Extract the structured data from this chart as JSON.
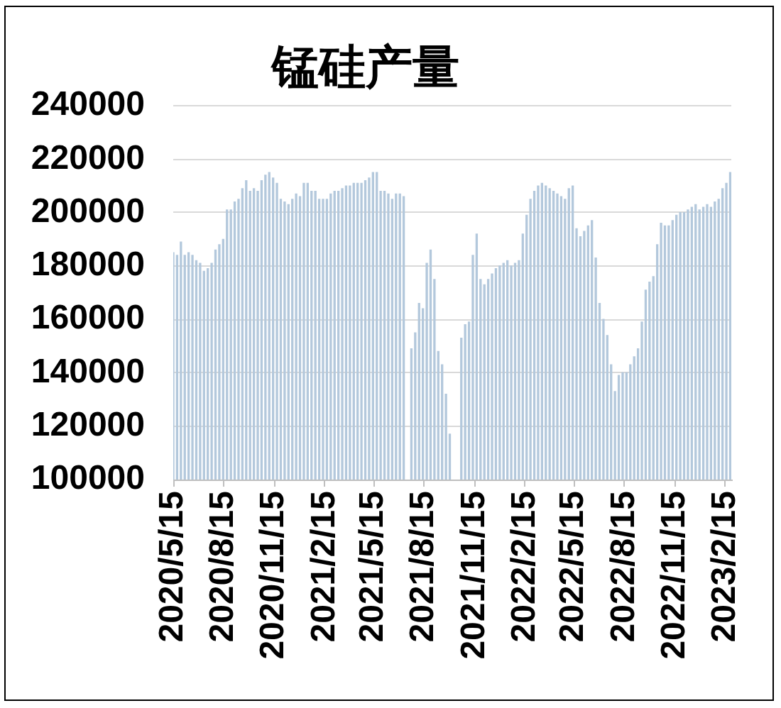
{
  "chart_data": {
    "type": "bar",
    "title": "锰硅产量",
    "x": [
      "2020-05-15",
      "2020-05-22",
      "2020-05-29",
      "2020-06-05",
      "2020-06-12",
      "2020-06-19",
      "2020-06-26",
      "2020-07-03",
      "2020-07-10",
      "2020-07-17",
      "2020-07-24",
      "2020-07-31",
      "2020-08-07",
      "2020-08-14",
      "2020-08-21",
      "2020-08-28",
      "2020-09-04",
      "2020-09-11",
      "2020-09-18",
      "2020-09-25",
      "2020-10-02",
      "2020-10-09",
      "2020-10-16",
      "2020-10-23",
      "2020-10-30",
      "2020-11-06",
      "2020-11-13",
      "2020-11-20",
      "2020-11-27",
      "2020-12-04",
      "2020-12-11",
      "2020-12-18",
      "2020-12-25",
      "2021-01-01",
      "2021-01-08",
      "2021-01-15",
      "2021-01-22",
      "2021-01-29",
      "2021-02-05",
      "2021-02-12",
      "2021-02-19",
      "2021-02-26",
      "2021-03-05",
      "2021-03-12",
      "2021-03-19",
      "2021-03-26",
      "2021-04-02",
      "2021-04-09",
      "2021-04-16",
      "2021-04-23",
      "2021-04-30",
      "2021-05-07",
      "2021-05-14",
      "2021-05-21",
      "2021-05-28",
      "2021-06-04",
      "2021-06-11",
      "2021-06-18",
      "2021-06-25",
      "2021-07-02",
      "2021-07-09",
      "2021-07-16",
      "2021-07-23",
      "2021-07-30",
      "2021-08-06",
      "2021-08-13",
      "2021-08-20",
      "2021-08-27",
      "2021-09-03",
      "2021-09-10",
      "2021-09-17",
      "2021-09-24",
      "2021-10-01",
      "2021-10-08",
      "2021-10-15",
      "2021-10-22",
      "2021-10-29",
      "2021-11-05",
      "2021-11-12",
      "2021-11-19",
      "2021-11-26",
      "2021-12-03",
      "2021-12-10",
      "2021-12-17",
      "2021-12-24",
      "2021-12-31",
      "2022-01-07",
      "2022-01-14",
      "2022-01-21",
      "2022-01-28",
      "2022-02-04",
      "2022-02-11",
      "2022-02-18",
      "2022-02-25",
      "2022-03-04",
      "2022-03-11",
      "2022-03-18",
      "2022-03-25",
      "2022-04-01",
      "2022-04-08",
      "2022-04-15",
      "2022-04-22",
      "2022-04-29",
      "2022-05-06",
      "2022-05-13",
      "2022-05-20",
      "2022-05-27",
      "2022-06-03",
      "2022-06-10",
      "2022-06-17",
      "2022-06-24",
      "2022-07-01",
      "2022-07-08",
      "2022-07-15",
      "2022-07-22",
      "2022-07-29",
      "2022-08-05",
      "2022-08-12",
      "2022-08-19",
      "2022-08-26",
      "2022-09-02",
      "2022-09-09",
      "2022-09-16",
      "2022-09-23",
      "2022-09-30",
      "2022-10-07",
      "2022-10-14",
      "2022-10-21",
      "2022-10-28",
      "2022-11-04",
      "2022-11-11",
      "2022-11-18",
      "2022-11-25",
      "2022-12-02",
      "2022-12-09",
      "2022-12-16",
      "2022-12-23",
      "2022-12-30",
      "2023-01-06",
      "2023-01-13",
      "2023-01-20",
      "2023-01-27",
      "2023-02-03",
      "2023-02-10",
      "2023-02-17",
      "2023-02-24"
    ],
    "values": [
      185000,
      184000,
      189000,
      184000,
      185000,
      184000,
      182000,
      181000,
      178000,
      179000,
      181000,
      186000,
      188000,
      190000,
      201000,
      201000,
      204000,
      205000,
      209000,
      212000,
      208000,
      209000,
      208000,
      212000,
      214000,
      215000,
      213000,
      211000,
      205000,
      204000,
      203000,
      205000,
      207000,
      206000,
      211000,
      211000,
      208000,
      208000,
      205000,
      205000,
      205000,
      207000,
      208000,
      208000,
      209000,
      210000,
      210000,
      211000,
      211000,
      211000,
      212000,
      213000,
      215000,
      215000,
      208000,
      208000,
      207000,
      205000,
      207000,
      207000,
      206000,
      null,
      149000,
      155000,
      166000,
      164000,
      181000,
      186000,
      175000,
      148000,
      143000,
      132000,
      117000,
      null,
      null,
      153000,
      158000,
      159000,
      184000,
      192000,
      175000,
      173000,
      175000,
      177000,
      179000,
      180000,
      181000,
      182000,
      180000,
      181000,
      182000,
      192000,
      199000,
      205000,
      208000,
      210000,
      211000,
      210000,
      209000,
      208000,
      207000,
      206000,
      205000,
      209000,
      210000,
      194000,
      191000,
      193000,
      195000,
      197000,
      183000,
      166000,
      160000,
      154000,
      143000,
      133000,
      139000,
      140000,
      140000,
      143000,
      146000,
      149000,
      159000,
      171000,
      174000,
      176000,
      188000,
      196000,
      195000,
      195000,
      197000,
      199000,
      200000,
      200000,
      201000,
      202000,
      203000,
      201000,
      202000,
      203000,
      202000,
      204000,
      205000,
      209000,
      211000,
      215000
    ],
    "color": "#b3c8dc",
    "xlim": [
      "2020-05-15",
      "2023-02-26"
    ],
    "xticks": [
      {
        "value": "2020-05-15",
        "label": "2020/5/15"
      },
      {
        "value": "2020-08-15",
        "label": "2020/8/15"
      },
      {
        "value": "2020-11-15",
        "label": "2020/11/15"
      },
      {
        "value": "2021-02-15",
        "label": "2021/2/15"
      },
      {
        "value": "2021-05-15",
        "label": "2021/5/15"
      },
      {
        "value": "2021-08-15",
        "label": "2021/8/15"
      },
      {
        "value": "2021-11-15",
        "label": "2021/11/15"
      },
      {
        "value": "2022-02-15",
        "label": "2022/2/15"
      },
      {
        "value": "2022-05-15",
        "label": "2022/5/15"
      },
      {
        "value": "2022-08-15",
        "label": "2022/8/15"
      },
      {
        "value": "2022-11-15",
        "label": "2022/11/15"
      },
      {
        "value": "2023-02-15",
        "label": "2023/2/15"
      }
    ],
    "ylim": [
      100000,
      240000
    ],
    "yticks": [
      100000,
      120000,
      140000,
      160000,
      180000,
      200000,
      220000,
      240000
    ],
    "grid": "y"
  }
}
